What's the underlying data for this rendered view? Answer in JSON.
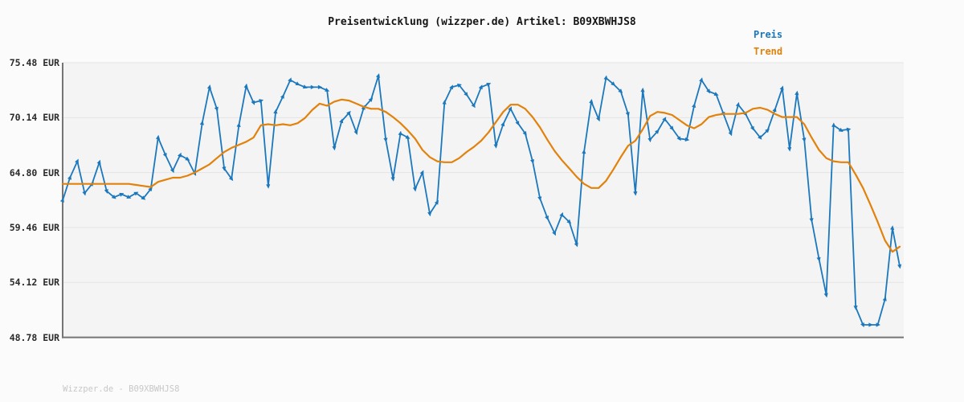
{
  "page": {
    "background": "#fbfbfb"
  },
  "header": {
    "title": "Preisentwicklung (wizzper.de) Artikel: B09XBWHJS8"
  },
  "watermark": {
    "text": "Wizzper.de - B09XBWHJS8"
  },
  "y_axis": {
    "unit": "EUR",
    "tick_labels": [
      "75.48 EUR",
      "70.14 EUR",
      "64.80 EUR",
      "59.46 EUR",
      "54.12 EUR",
      "48.78 EUR"
    ]
  },
  "chart_data": {
    "type": "line",
    "title": "Preisentwicklung (wizzper.de) Artikel: B09XBWHJS8",
    "ylabel": "EUR",
    "ylim": [
      48.78,
      75.48
    ],
    "y_ticks": [
      75.48,
      70.14,
      64.8,
      59.46,
      54.12,
      48.78
    ],
    "grid": "horizontal",
    "legend_position": "top-right",
    "x_axis_labels_visible": false,
    "plot_background": "#f4f4f4",
    "gridline_color": "#e4e4e4",
    "axis_color": "#757575",
    "series": [
      {
        "name": "Preis",
        "color": "#1b78bd",
        "marker": "directional-caret",
        "line_width": 1.8,
        "values": [
          62.1,
          64.3,
          65.9,
          62.8,
          63.7,
          65.8,
          63.0,
          62.4,
          62.7,
          62.4,
          62.8,
          62.3,
          63.2,
          68.2,
          66.5,
          65.0,
          66.5,
          66.1,
          64.7,
          69.6,
          73.1,
          71.0,
          65.2,
          64.2,
          69.4,
          73.2,
          71.6,
          71.8,
          63.5,
          70.7,
          72.2,
          73.8,
          73.4,
          73.1,
          73.1,
          73.1,
          72.8,
          67.2,
          69.8,
          70.6,
          68.7,
          71.1,
          71.9,
          74.2,
          68.0,
          64.2,
          68.6,
          68.2,
          63.2,
          64.8,
          60.8,
          61.9,
          71.6,
          73.1,
          73.3,
          72.4,
          71.3,
          73.1,
          73.4,
          67.4,
          69.5,
          71.0,
          69.6,
          68.6,
          65.9,
          62.3,
          60.4,
          58.9,
          60.7,
          60.0,
          57.8,
          66.8,
          71.7,
          70.0,
          74.0,
          73.4,
          72.7,
          70.5,
          62.8,
          72.8,
          68.0,
          68.8,
          70.0,
          69.1,
          68.1,
          68.0,
          71.3,
          73.8,
          72.7,
          72.4,
          70.5,
          68.6,
          71.4,
          70.5,
          69.1,
          68.2,
          68.9,
          70.9,
          73.0,
          67.1,
          72.5,
          68.0,
          60.2,
          56.4,
          52.9,
          69.4,
          68.9,
          69.0,
          51.7,
          50.0,
          50.0,
          50.0,
          52.5,
          59.4,
          55.7
        ]
      },
      {
        "name": "Trend",
        "color": "#e2820c",
        "marker": "none",
        "line_width": 2.2,
        "values": [
          63.7,
          63.7,
          63.7,
          63.7,
          63.7,
          63.7,
          63.7,
          63.7,
          63.7,
          63.7,
          63.6,
          63.5,
          63.4,
          63.9,
          64.1,
          64.3,
          64.3,
          64.5,
          64.8,
          65.2,
          65.6,
          66.2,
          66.8,
          67.2,
          67.5,
          67.8,
          68.2,
          69.4,
          69.5,
          69.4,
          69.5,
          69.4,
          69.6,
          70.1,
          70.9,
          71.5,
          71.3,
          71.7,
          71.9,
          71.8,
          71.5,
          71.2,
          71.0,
          71.0,
          70.7,
          70.2,
          69.6,
          68.9,
          68.1,
          67.0,
          66.3,
          65.9,
          65.8,
          65.8,
          66.2,
          66.8,
          67.3,
          67.9,
          68.7,
          69.7,
          70.7,
          71.4,
          71.4,
          71.0,
          70.2,
          69.2,
          68.0,
          66.9,
          66.0,
          65.2,
          64.4,
          63.7,
          63.3,
          63.3,
          64.0,
          65.1,
          66.3,
          67.4,
          67.9,
          69.0,
          70.3,
          70.7,
          70.6,
          70.4,
          69.9,
          69.4,
          69.1,
          69.5,
          70.2,
          70.4,
          70.5,
          70.5,
          70.5,
          70.6,
          71.0,
          71.1,
          70.9,
          70.5,
          70.2,
          70.2,
          70.2,
          69.5,
          68.2,
          67.0,
          66.2,
          65.9,
          65.8,
          65.8,
          64.6,
          63.3,
          61.7,
          60.0,
          58.2,
          57.1,
          57.6
        ]
      }
    ]
  }
}
